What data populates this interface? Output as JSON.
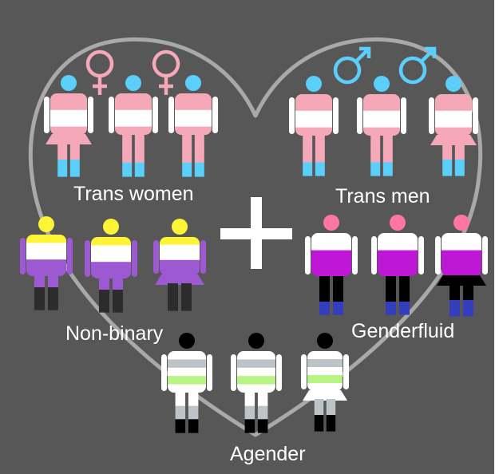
{
  "groups": [
    {
      "key": "trans-women",
      "label": "Trans women"
    },
    {
      "key": "trans-men",
      "label": "Trans men"
    },
    {
      "key": "non-binary",
      "label": "Non-binary"
    },
    {
      "key": "genderfluid",
      "label": "Genderfluid"
    },
    {
      "key": "agender",
      "label": "Agender"
    }
  ],
  "symbols": [
    "female-symbol",
    "female-symbol",
    "male-symbol",
    "male-symbol",
    "plus-sign",
    "heart-outline"
  ],
  "colors": {
    "background": "#575757",
    "heart": "#a9a9a9",
    "text": "#ffffff",
    "trans_blue": "#5bcefa",
    "trans_pink": "#f5a9b8",
    "white": "#ffffff",
    "nb_yellow": "#fcf434",
    "nb_purple": "#9c59d1",
    "nb_black": "#2c2c2c",
    "gf_pink": "#ff76a4",
    "gf_purple": "#be18d6",
    "gf_black": "#000000",
    "gf_blue": "#333ebd",
    "ag_black": "#000000",
    "ag_gray": "#bcc4c7",
    "ag_green": "#b8f483"
  }
}
